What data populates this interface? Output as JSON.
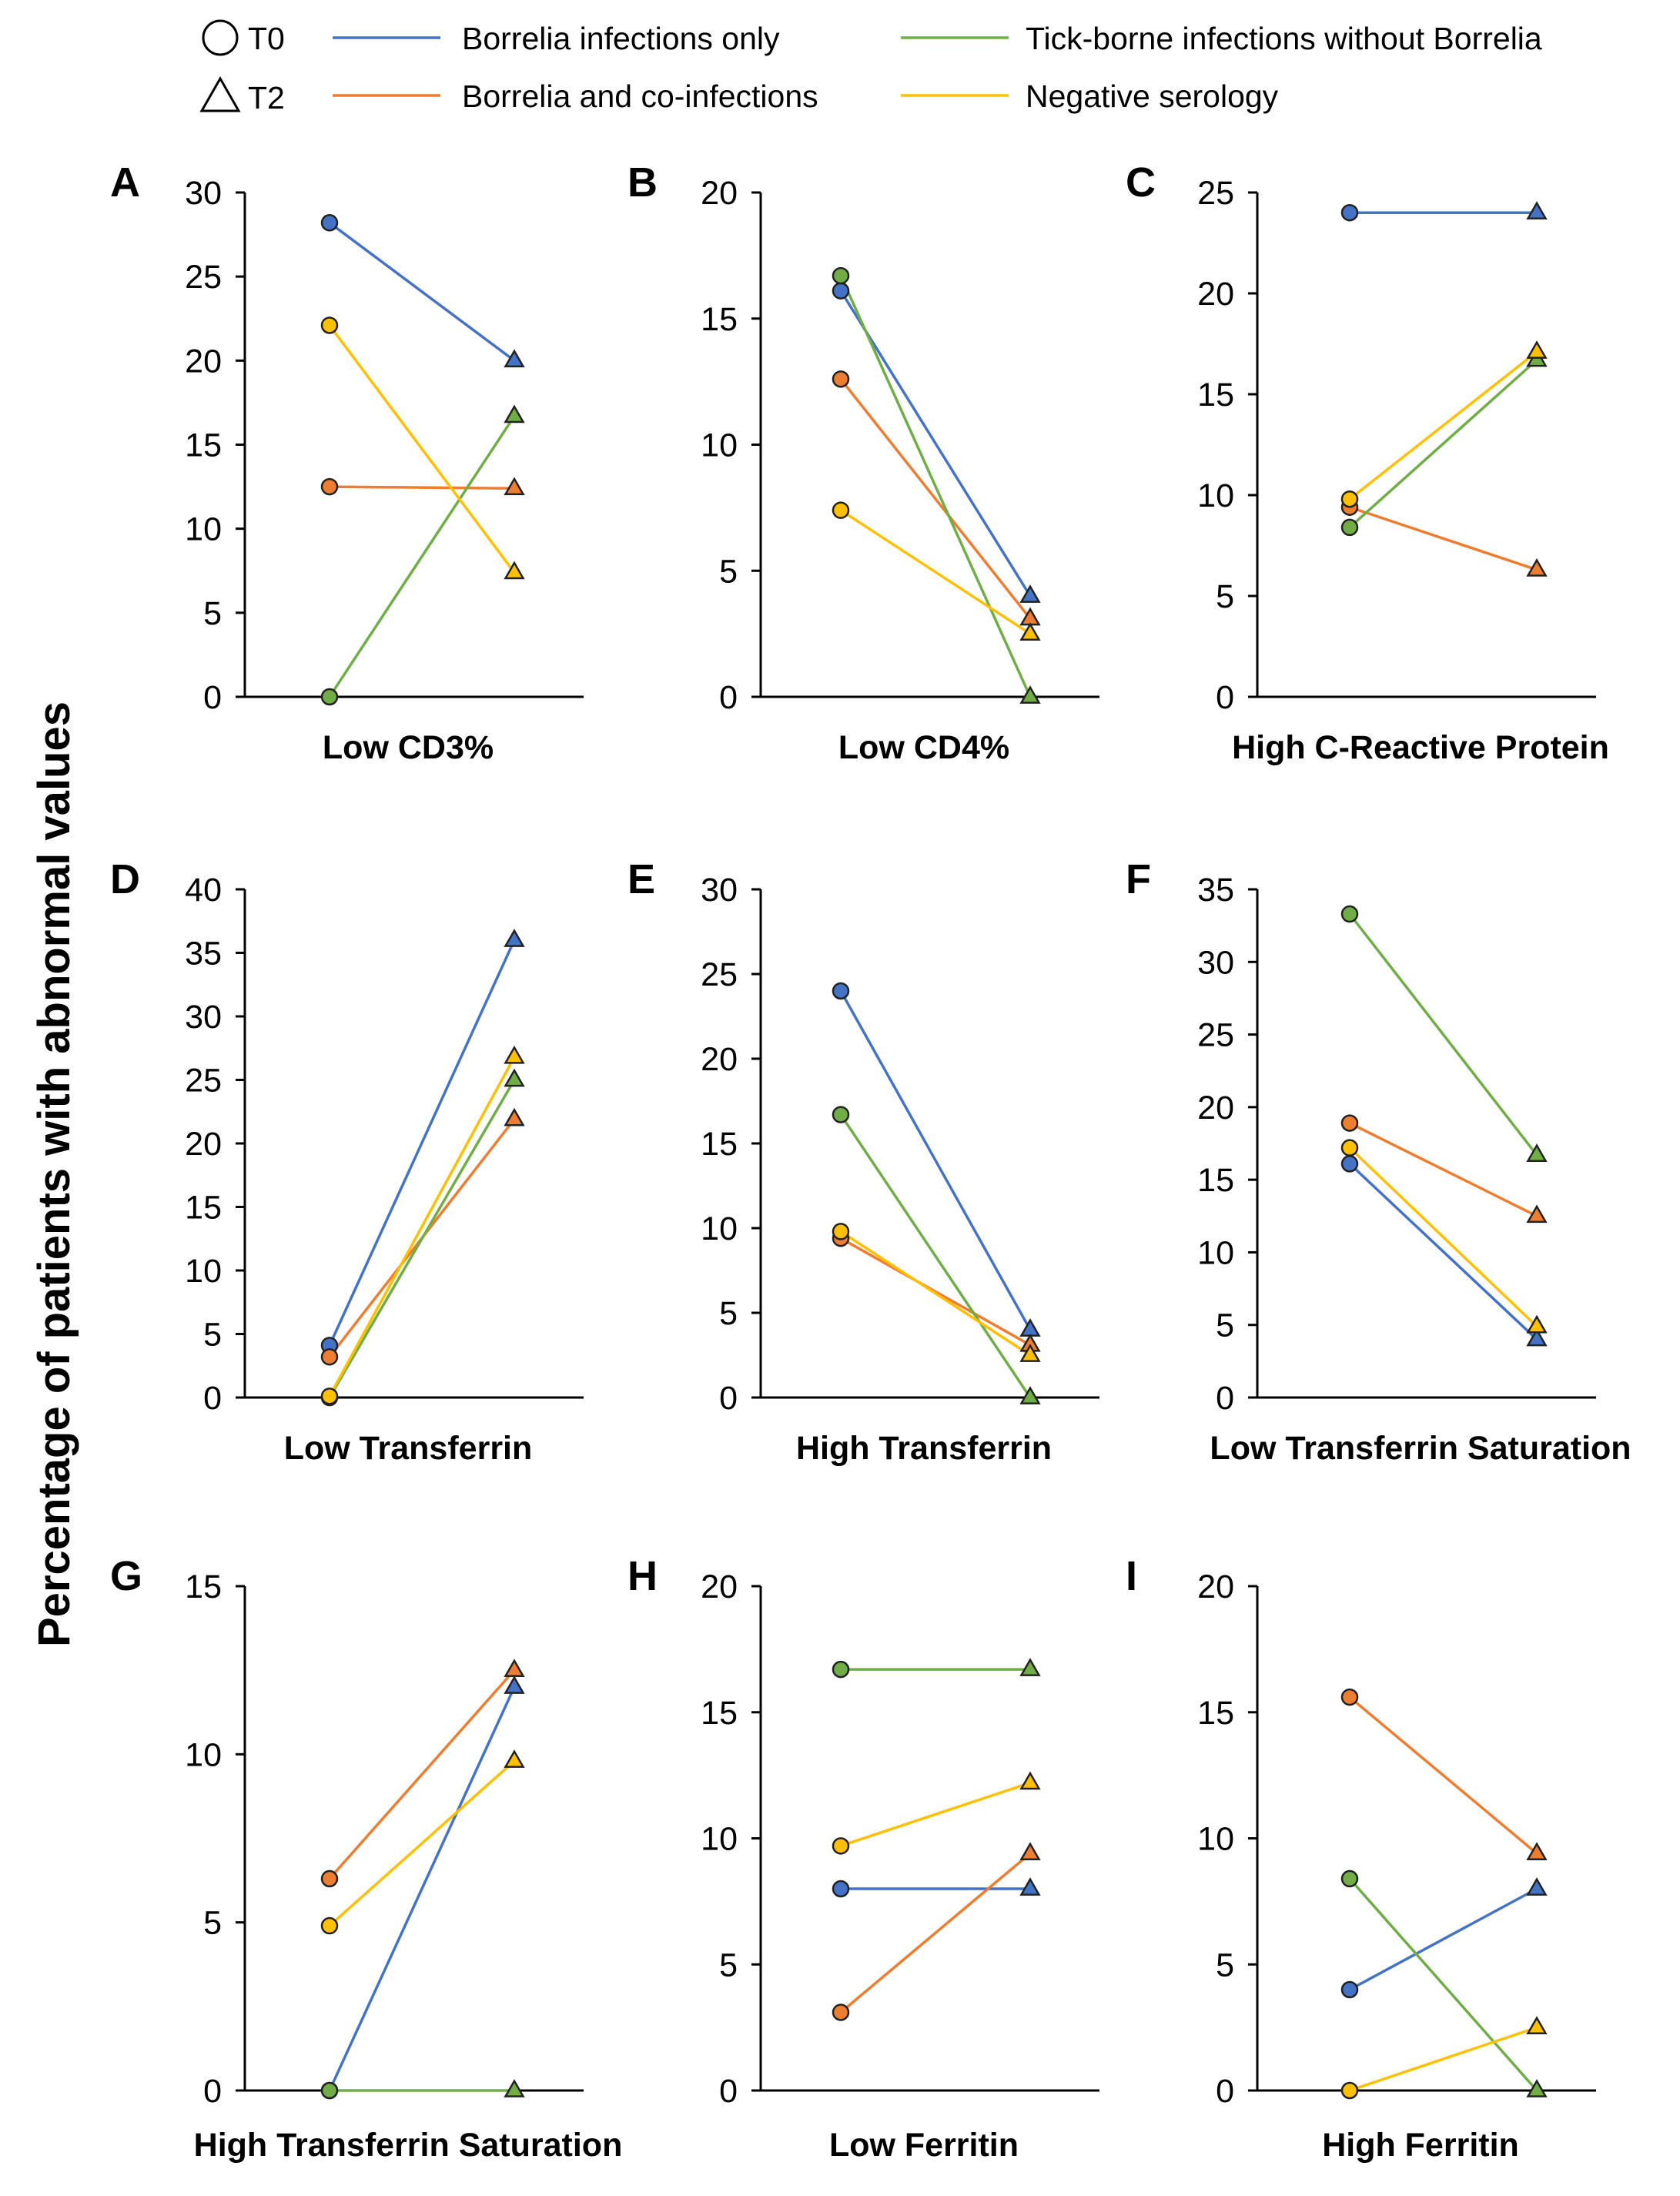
{
  "figure": {
    "y_axis_label": "Percentage of patients with abnormal values",
    "legend": {
      "timepoints": [
        {
          "label": "T0",
          "marker": "circle"
        },
        {
          "label": "T2",
          "marker": "triangle"
        }
      ],
      "groups": [
        {
          "label": "Borrelia infections only",
          "color": "#4472C4"
        },
        {
          "label": "Borrelia and co-infections",
          "color": "#ED7D31"
        },
        {
          "label": "Tick-borne infections without Borrelia",
          "color": "#70AD47"
        },
        {
          "label": "Negative serology",
          "color": "#FFC000"
        }
      ]
    }
  },
  "chart_data": [
    {
      "type": "line",
      "panel": "A",
      "xlabel": "Low CD3%",
      "categories": [
        "T0",
        "T2"
      ],
      "ylim": [
        0,
        30
      ],
      "yticks": [
        0,
        5,
        10,
        15,
        20,
        25,
        30
      ],
      "series": [
        {
          "name": "Borrelia infections only",
          "color": "#4472C4",
          "values": [
            28.2,
            20.0
          ]
        },
        {
          "name": "Borrelia and co-infections",
          "color": "#ED7D31",
          "values": [
            12.5,
            12.4
          ]
        },
        {
          "name": "Tick-borne infections without Borrelia",
          "color": "#70AD47",
          "values": [
            0.0,
            16.7
          ]
        },
        {
          "name": "Negative serology",
          "color": "#FFC000",
          "values": [
            22.1,
            7.4
          ]
        }
      ]
    },
    {
      "type": "line",
      "panel": "B",
      "xlabel": "Low CD4%",
      "categories": [
        "T0",
        "T2"
      ],
      "ylim": [
        0,
        20
      ],
      "yticks": [
        0,
        5,
        10,
        15,
        20
      ],
      "series": [
        {
          "name": "Borrelia infections only",
          "color": "#4472C4",
          "values": [
            16.1,
            4.0
          ]
        },
        {
          "name": "Borrelia and co-infections",
          "color": "#ED7D31",
          "values": [
            12.6,
            3.1
          ]
        },
        {
          "name": "Tick-borne infections without Borrelia",
          "color": "#70AD47",
          "values": [
            16.7,
            0.0
          ]
        },
        {
          "name": "Negative serology",
          "color": "#FFC000",
          "values": [
            7.4,
            2.5
          ]
        }
      ]
    },
    {
      "type": "line",
      "panel": "C",
      "xlabel": "High C-Reactive Protein",
      "categories": [
        "T0",
        "T2"
      ],
      "ylim": [
        0,
        25
      ],
      "yticks": [
        0,
        5,
        10,
        15,
        20,
        25
      ],
      "series": [
        {
          "name": "Borrelia infections only",
          "color": "#4472C4",
          "values": [
            24.0,
            24.0
          ]
        },
        {
          "name": "Borrelia and co-infections",
          "color": "#ED7D31",
          "values": [
            9.4,
            6.3
          ]
        },
        {
          "name": "Tick-borne infections without Borrelia",
          "color": "#70AD47",
          "values": [
            8.4,
            16.7
          ]
        },
        {
          "name": "Negative serology",
          "color": "#FFC000",
          "values": [
            9.8,
            17.1
          ]
        }
      ]
    },
    {
      "type": "line",
      "panel": "D",
      "xlabel": "Low Transferrin",
      "categories": [
        "T0",
        "T2"
      ],
      "ylim": [
        0,
        40
      ],
      "yticks": [
        0,
        5,
        10,
        15,
        20,
        25,
        30,
        35,
        40
      ],
      "series": [
        {
          "name": "Borrelia infections only",
          "color": "#4472C4",
          "values": [
            4.1,
            36.0
          ]
        },
        {
          "name": "Borrelia and co-infections",
          "color": "#ED7D31",
          "values": [
            3.2,
            21.9
          ]
        },
        {
          "name": "Tick-borne infections without Borrelia",
          "color": "#70AD47",
          "values": [
            0.0,
            25.0
          ]
        },
        {
          "name": "Negative serology",
          "color": "#FFC000",
          "values": [
            0.1,
            26.8
          ]
        }
      ]
    },
    {
      "type": "line",
      "panel": "E",
      "xlabel": "High Transferrin",
      "categories": [
        "T0",
        "T2"
      ],
      "ylim": [
        0,
        30
      ],
      "yticks": [
        0,
        5,
        10,
        15,
        20,
        25,
        30
      ],
      "series": [
        {
          "name": "Borrelia infections only",
          "color": "#4472C4",
          "values": [
            24.0,
            4.0
          ]
        },
        {
          "name": "Borrelia and co-infections",
          "color": "#ED7D31",
          "values": [
            9.4,
            3.1
          ]
        },
        {
          "name": "Tick-borne infections without Borrelia",
          "color": "#70AD47",
          "values": [
            16.7,
            0.0
          ]
        },
        {
          "name": "Negative serology",
          "color": "#FFC000",
          "values": [
            9.8,
            2.5
          ]
        }
      ]
    },
    {
      "type": "line",
      "panel": "F",
      "xlabel": "Low Transferrin Saturation",
      "categories": [
        "T0",
        "T2"
      ],
      "ylim": [
        0,
        35
      ],
      "yticks": [
        0,
        5,
        10,
        15,
        20,
        25,
        30,
        35
      ],
      "series": [
        {
          "name": "Borrelia infections only",
          "color": "#4472C4",
          "values": [
            16.1,
            4.0
          ]
        },
        {
          "name": "Borrelia and co-infections",
          "color": "#ED7D31",
          "values": [
            18.9,
            12.5
          ]
        },
        {
          "name": "Tick-borne infections without Borrelia",
          "color": "#70AD47",
          "values": [
            33.3,
            16.7
          ]
        },
        {
          "name": "Negative serology",
          "color": "#FFC000",
          "values": [
            17.2,
            4.9
          ]
        }
      ]
    },
    {
      "type": "line",
      "panel": "G",
      "xlabel": "High Transferrin Saturation",
      "categories": [
        "T0",
        "T2"
      ],
      "ylim": [
        0,
        15
      ],
      "yticks": [
        0,
        5,
        10,
        15
      ],
      "series": [
        {
          "name": "Borrelia infections only",
          "color": "#4472C4",
          "values": [
            0.0,
            12.0
          ]
        },
        {
          "name": "Borrelia and co-infections",
          "color": "#ED7D31",
          "values": [
            6.3,
            12.5
          ]
        },
        {
          "name": "Tick-borne infections without Borrelia",
          "color": "#70AD47",
          "values": [
            0.0,
            0.0
          ]
        },
        {
          "name": "Negative serology",
          "color": "#FFC000",
          "values": [
            4.9,
            9.8
          ]
        }
      ]
    },
    {
      "type": "line",
      "panel": "H",
      "xlabel": "Low Ferritin",
      "categories": [
        "T0",
        "T2"
      ],
      "ylim": [
        0,
        20
      ],
      "yticks": [
        0,
        5,
        10,
        15,
        20
      ],
      "series": [
        {
          "name": "Borrelia infections only",
          "color": "#4472C4",
          "values": [
            8.0,
            8.0
          ]
        },
        {
          "name": "Borrelia and co-infections",
          "color": "#ED7D31",
          "values": [
            3.1,
            9.4
          ]
        },
        {
          "name": "Tick-borne infections without Borrelia",
          "color": "#70AD47",
          "values": [
            16.7,
            16.7
          ]
        },
        {
          "name": "Negative serology",
          "color": "#FFC000",
          "values": [
            9.7,
            12.2
          ]
        }
      ]
    },
    {
      "type": "line",
      "panel": "I",
      "xlabel": "High Ferritin",
      "categories": [
        "T0",
        "T2"
      ],
      "ylim": [
        0,
        20
      ],
      "yticks": [
        0,
        5,
        10,
        15,
        20
      ],
      "series": [
        {
          "name": "Borrelia infections only",
          "color": "#4472C4",
          "values": [
            4.0,
            8.0
          ]
        },
        {
          "name": "Borrelia and co-infections",
          "color": "#ED7D31",
          "values": [
            15.6,
            9.4
          ]
        },
        {
          "name": "Tick-borne infections without Borrelia",
          "color": "#70AD47",
          "values": [
            8.4,
            0.0
          ]
        },
        {
          "name": "Negative serology",
          "color": "#FFC000",
          "values": [
            0.0,
            2.5
          ]
        }
      ]
    }
  ]
}
